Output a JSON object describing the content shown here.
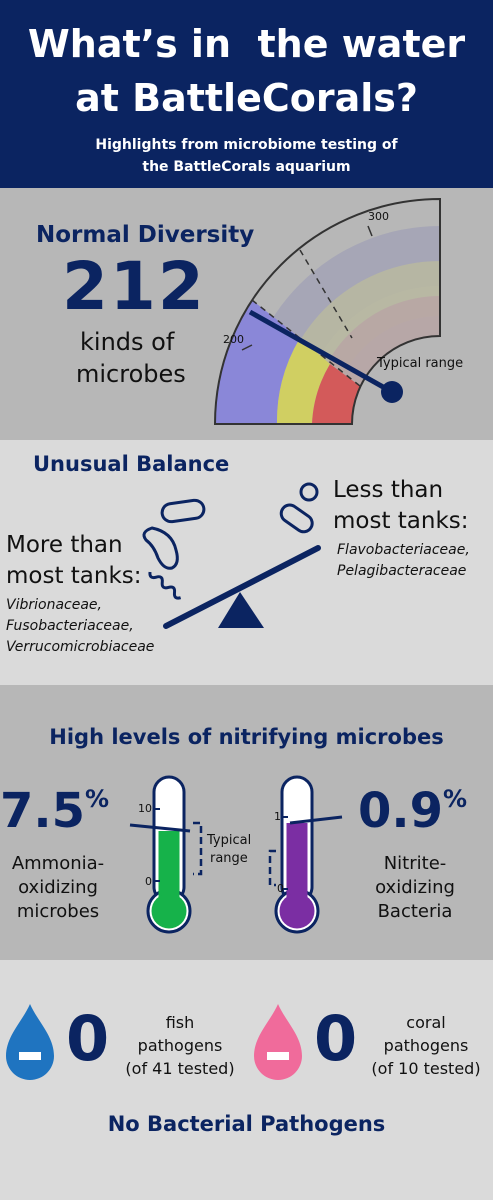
{
  "header": {
    "title_line1": "What’s in  the water",
    "title_line2": "at BattleCorals?",
    "subtitle_line1": "Highlights from microbiome testing of",
    "subtitle_line2": "the BattleCorals aquarium"
  },
  "diversity": {
    "heading": "Normal Diversity",
    "count": "212",
    "caption_line1": "kinds of",
    "caption_line2": "microbes",
    "gauge_label_low": "200",
    "gauge_label_high": "300",
    "typical_range_label": "Typical range"
  },
  "balance": {
    "heading": "Unusual Balance",
    "more_line1": "More than",
    "more_line2": "most tanks:",
    "more_taxa": [
      "Vibrionaceae,",
      "Fusobacteriaceae,",
      "Verrucomicrobiaceae"
    ],
    "less_line1": "Less than",
    "less_line2": "most tanks:",
    "less_taxa": [
      "Flavobacteriaceae,",
      "Pelagibacteraceae"
    ]
  },
  "nitrifying": {
    "heading": "High levels of nitrifying microbes",
    "ammonia": {
      "value": "7.5",
      "unit": "%",
      "label_lines": [
        "Ammonia-",
        "oxidizing",
        "microbes"
      ],
      "scale_top": "10",
      "scale_bottom": "0",
      "range_label_line1": "Typical",
      "range_label_line2": "range",
      "color": "#16b24a"
    },
    "nitrite": {
      "value": "0.9",
      "unit": "%",
      "label_lines": [
        "Nitrite-",
        "oxidizing",
        "Bacteria"
      ],
      "scale_top": "1",
      "scale_bottom": "0",
      "color": "#7b2ea3"
    }
  },
  "pathogens": {
    "fish": {
      "count": "0",
      "lines": [
        "fish",
        "pathogens",
        "(of 41 tested)"
      ],
      "color": "#1f74c0"
    },
    "coral": {
      "count": "0",
      "lines": [
        "coral",
        "pathogens",
        "(of 10 tested)"
      ],
      "color": "#f06b9b"
    },
    "footer": "No Bacterial Pathogens"
  }
}
